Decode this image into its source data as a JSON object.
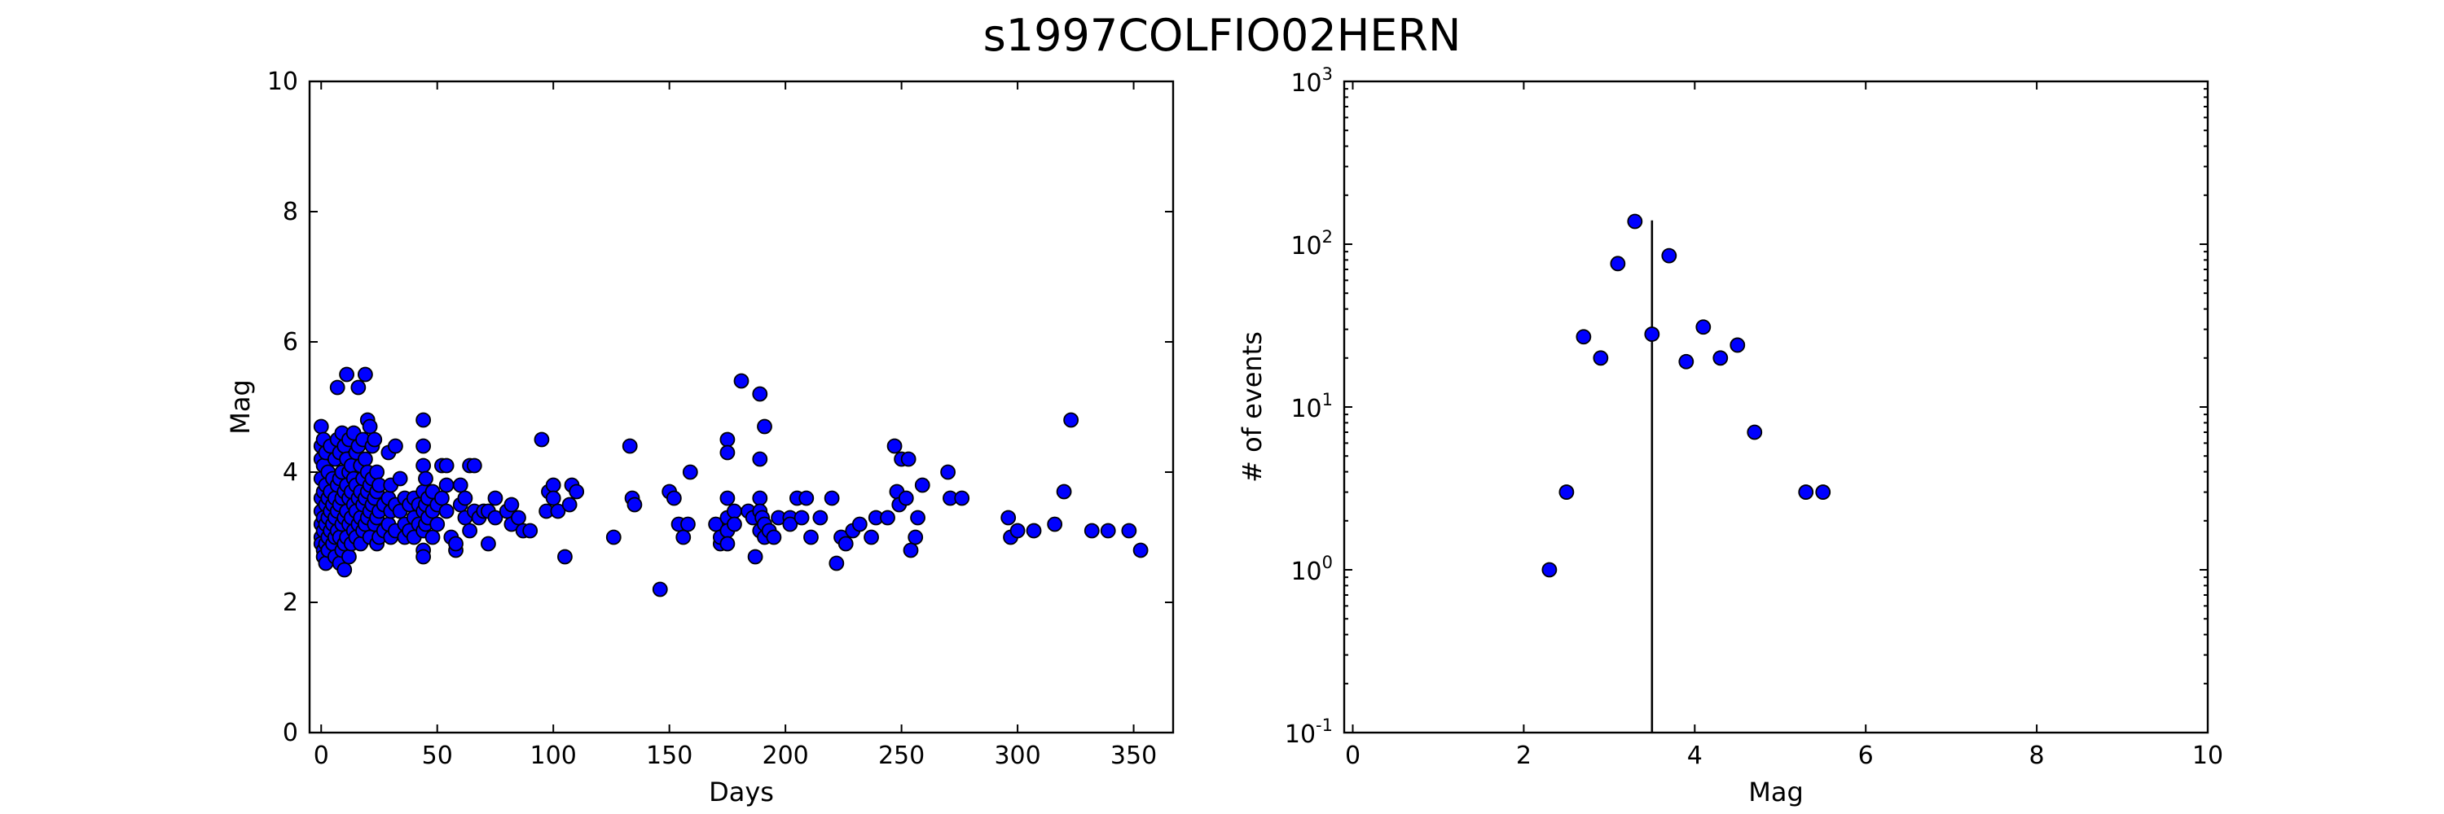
{
  "chart_data": {
    "title": "s1997COLFIO02HERN",
    "panels": [
      {
        "type": "scatter",
        "xlabel": "Days",
        "ylabel": "Mag",
        "xlim": [
          -5,
          367
        ],
        "ylim": [
          0,
          10
        ],
        "x_ticks": [
          0,
          50,
          100,
          150,
          200,
          250,
          300,
          350
        ],
        "y_ticks": [
          0,
          2,
          4,
          6,
          8,
          10
        ],
        "grid": false,
        "points": [
          [
            0,
            4.7
          ],
          [
            0,
            4.4
          ],
          [
            0,
            4.2
          ],
          [
            0,
            3.9
          ],
          [
            0,
            3.6
          ],
          [
            0,
            3.4
          ],
          [
            0,
            3.2
          ],
          [
            0,
            3.0
          ],
          [
            0,
            2.9
          ],
          [
            1,
            4.5
          ],
          [
            1,
            4.1
          ],
          [
            1,
            3.7
          ],
          [
            1,
            3.3
          ],
          [
            1,
            3.1
          ],
          [
            1,
            2.8
          ],
          [
            1,
            2.7
          ],
          [
            2,
            4.3
          ],
          [
            2,
            3.8
          ],
          [
            2,
            3.5
          ],
          [
            2,
            3.2
          ],
          [
            2,
            2.9
          ],
          [
            2,
            2.6
          ],
          [
            3,
            4.0
          ],
          [
            3,
            3.6
          ],
          [
            3,
            3.3
          ],
          [
            3,
            3.0
          ],
          [
            3,
            2.8
          ],
          [
            4,
            4.4
          ],
          [
            4,
            3.7
          ],
          [
            4,
            3.4
          ],
          [
            4,
            3.1
          ],
          [
            5,
            3.9
          ],
          [
            5,
            3.5
          ],
          [
            5,
            3.2
          ],
          [
            5,
            2.9
          ],
          [
            6,
            4.2
          ],
          [
            6,
            3.6
          ],
          [
            6,
            3.3
          ],
          [
            6,
            3.0
          ],
          [
            6,
            2.7
          ],
          [
            7,
            4.5
          ],
          [
            7,
            5.3
          ],
          [
            7,
            3.8
          ],
          [
            7,
            3.4
          ],
          [
            7,
            3.1
          ],
          [
            8,
            4.3
          ],
          [
            8,
            3.9
          ],
          [
            8,
            3.5
          ],
          [
            8,
            3.0
          ],
          [
            8,
            2.6
          ],
          [
            9,
            4.6
          ],
          [
            9,
            4.0
          ],
          [
            9,
            3.6
          ],
          [
            9,
            3.2
          ],
          [
            9,
            2.8
          ],
          [
            10,
            4.4
          ],
          [
            10,
            3.7
          ],
          [
            10,
            3.3
          ],
          [
            10,
            2.9
          ],
          [
            10,
            2.5
          ],
          [
            11,
            5.5
          ],
          [
            11,
            4.2
          ],
          [
            11,
            3.8
          ],
          [
            11,
            3.4
          ],
          [
            11,
            3.0
          ],
          [
            12,
            4.5
          ],
          [
            12,
            4.0
          ],
          [
            12,
            3.6
          ],
          [
            12,
            3.2
          ],
          [
            12,
            2.7
          ],
          [
            13,
            4.1
          ],
          [
            13,
            3.7
          ],
          [
            13,
            3.3
          ],
          [
            13,
            2.9
          ],
          [
            14,
            4.6
          ],
          [
            14,
            3.9
          ],
          [
            14,
            3.5
          ],
          [
            14,
            3.1
          ],
          [
            15,
            4.3
          ],
          [
            15,
            3.8
          ],
          [
            15,
            3.4
          ],
          [
            15,
            3.0
          ],
          [
            16,
            5.3
          ],
          [
            16,
            4.4
          ],
          [
            16,
            3.6
          ],
          [
            16,
            3.2
          ],
          [
            17,
            4.1
          ],
          [
            17,
            3.7
          ],
          [
            17,
            3.3
          ],
          [
            17,
            2.9
          ],
          [
            18,
            4.5
          ],
          [
            18,
            3.9
          ],
          [
            18,
            3.5
          ],
          [
            18,
            3.1
          ],
          [
            19,
            5.5
          ],
          [
            19,
            4.2
          ],
          [
            19,
            3.6
          ],
          [
            19,
            3.2
          ],
          [
            20,
            4.8
          ],
          [
            20,
            4.0
          ],
          [
            20,
            3.7
          ],
          [
            20,
            3.3
          ],
          [
            21,
            4.7
          ],
          [
            21,
            3.8
          ],
          [
            21,
            3.4
          ],
          [
            21,
            3.0
          ],
          [
            22,
            4.4
          ],
          [
            22,
            3.9
          ],
          [
            22,
            3.5
          ],
          [
            23,
            4.5
          ],
          [
            23,
            3.6
          ],
          [
            23,
            3.2
          ],
          [
            24,
            4.0
          ],
          [
            24,
            3.7
          ],
          [
            24,
            3.3
          ],
          [
            24,
            2.9
          ],
          [
            25,
            3.8
          ],
          [
            25,
            3.4
          ],
          [
            25,
            3.0
          ],
          [
            27,
            3.5
          ],
          [
            27,
            3.1
          ],
          [
            29,
            4.3
          ],
          [
            29,
            3.6
          ],
          [
            29,
            3.2
          ],
          [
            30,
            3.8
          ],
          [
            30,
            3.4
          ],
          [
            30,
            3.0
          ],
          [
            32,
            4.4
          ],
          [
            32,
            3.5
          ],
          [
            32,
            3.1
          ],
          [
            34,
            3.9
          ],
          [
            34,
            3.4
          ],
          [
            36,
            3.6
          ],
          [
            36,
            3.2
          ],
          [
            36,
            3.0
          ],
          [
            38,
            3.5
          ],
          [
            38,
            3.1
          ],
          [
            40,
            3.6
          ],
          [
            40,
            3.3
          ],
          [
            40,
            3.0
          ],
          [
            42,
            3.5
          ],
          [
            42,
            3.2
          ],
          [
            44,
            4.8
          ],
          [
            44,
            4.4
          ],
          [
            44,
            4.1
          ],
          [
            44,
            3.7
          ],
          [
            44,
            3.4
          ],
          [
            44,
            3.1
          ],
          [
            44,
            2.8
          ],
          [
            44,
            2.7
          ],
          [
            45,
            3.9
          ],
          [
            45,
            3.5
          ],
          [
            45,
            3.2
          ],
          [
            46,
            3.6
          ],
          [
            46,
            3.3
          ],
          [
            48,
            3.7
          ],
          [
            48,
            3.4
          ],
          [
            48,
            3.0
          ],
          [
            50,
            3.5
          ],
          [
            50,
            3.2
          ],
          [
            52,
            4.1
          ],
          [
            52,
            3.6
          ],
          [
            54,
            4.1
          ],
          [
            54,
            3.8
          ],
          [
            54,
            3.4
          ],
          [
            56,
            3.0
          ],
          [
            58,
            2.8
          ],
          [
            58,
            2.9
          ],
          [
            60,
            3.8
          ],
          [
            60,
            3.5
          ],
          [
            62,
            3.6
          ],
          [
            62,
            3.3
          ],
          [
            64,
            4.1
          ],
          [
            64,
            3.1
          ],
          [
            66,
            4.1
          ],
          [
            66,
            3.4
          ],
          [
            68,
            3.3
          ],
          [
            70,
            3.4
          ],
          [
            72,
            2.9
          ],
          [
            72,
            3.4
          ],
          [
            75,
            3.6
          ],
          [
            75,
            3.3
          ],
          [
            80,
            3.4
          ],
          [
            82,
            3.5
          ],
          [
            82,
            3.2
          ],
          [
            85,
            3.3
          ],
          [
            87,
            3.1
          ],
          [
            90,
            3.1
          ],
          [
            95,
            4.5
          ],
          [
            97,
            3.4
          ],
          [
            98,
            3.7
          ],
          [
            100,
            3.8
          ],
          [
            100,
            3.6
          ],
          [
            102,
            3.4
          ],
          [
            105,
            2.7
          ],
          [
            107,
            3.5
          ],
          [
            108,
            3.8
          ],
          [
            110,
            3.7
          ],
          [
            126,
            3.0
          ],
          [
            133,
            4.4
          ],
          [
            134,
            3.6
          ],
          [
            135,
            3.5
          ],
          [
            146,
            2.2
          ],
          [
            150,
            3.7
          ],
          [
            152,
            3.6
          ],
          [
            154,
            3.2
          ],
          [
            156,
            3.0
          ],
          [
            158,
            3.2
          ],
          [
            159,
            4.0
          ],
          [
            170,
            3.2
          ],
          [
            172,
            2.9
          ],
          [
            172,
            3.0
          ],
          [
            175,
            4.5
          ],
          [
            175,
            4.3
          ],
          [
            175,
            3.6
          ],
          [
            175,
            3.3
          ],
          [
            175,
            3.1
          ],
          [
            175,
            2.9
          ],
          [
            178,
            3.4
          ],
          [
            178,
            3.2
          ],
          [
            181,
            5.4
          ],
          [
            184,
            3.4
          ],
          [
            186,
            3.3
          ],
          [
            187,
            2.7
          ],
          [
            189,
            5.2
          ],
          [
            189,
            4.2
          ],
          [
            189,
            3.6
          ],
          [
            189,
            3.4
          ],
          [
            189,
            3.1
          ],
          [
            190,
            3.3
          ],
          [
            191,
            4.7
          ],
          [
            191,
            3.2
          ],
          [
            191,
            3.0
          ],
          [
            193,
            3.1
          ],
          [
            195,
            3.0
          ],
          [
            197,
            3.3
          ],
          [
            202,
            3.3
          ],
          [
            202,
            3.2
          ],
          [
            205,
            3.6
          ],
          [
            207,
            3.3
          ],
          [
            209,
            3.6
          ],
          [
            211,
            3.0
          ],
          [
            215,
            3.3
          ],
          [
            220,
            3.6
          ],
          [
            222,
            2.6
          ],
          [
            224,
            3.0
          ],
          [
            226,
            2.9
          ],
          [
            229,
            3.1
          ],
          [
            232,
            3.2
          ],
          [
            237,
            3.0
          ],
          [
            239,
            3.3
          ],
          [
            244,
            3.3
          ],
          [
            247,
            4.4
          ],
          [
            248,
            3.7
          ],
          [
            249,
            3.5
          ],
          [
            250,
            4.2
          ],
          [
            252,
            3.6
          ],
          [
            253,
            4.2
          ],
          [
            254,
            2.8
          ],
          [
            256,
            3.0
          ],
          [
            257,
            3.3
          ],
          [
            259,
            3.8
          ],
          [
            270,
            4.0
          ],
          [
            271,
            3.6
          ],
          [
            276,
            3.6
          ],
          [
            296,
            3.3
          ],
          [
            297,
            3.0
          ],
          [
            300,
            3.1
          ],
          [
            307,
            3.1
          ],
          [
            316,
            3.2
          ],
          [
            320,
            3.7
          ],
          [
            323,
            4.8
          ],
          [
            332,
            3.1
          ],
          [
            339,
            3.1
          ],
          [
            348,
            3.1
          ],
          [
            353,
            2.8
          ]
        ]
      },
      {
        "type": "scatter",
        "xlabel": "Mag",
        "ylabel": "# of events",
        "xlim": [
          -0.1,
          10
        ],
        "y_scale": "log",
        "ylim": [
          0.1,
          1000
        ],
        "x_ticks": [
          0,
          2,
          4,
          6,
          8,
          10
        ],
        "y_ticks": [
          {
            "base": "10",
            "exp": "-1",
            "value": 0.1
          },
          {
            "base": "10",
            "exp": "0",
            "value": 1
          },
          {
            "base": "10",
            "exp": "1",
            "value": 10
          },
          {
            "base": "10",
            "exp": "2",
            "value": 100
          },
          {
            "base": "10",
            "exp": "3",
            "value": 1000
          }
        ],
        "grid": false,
        "x": [
          2.3,
          2.5,
          2.7,
          2.9,
          3.1,
          3.3,
          3.5,
          3.7,
          3.9,
          4.1,
          4.3,
          4.5,
          4.7,
          5.3,
          5.5
        ],
        "y": [
          1,
          3,
          27,
          20,
          76,
          138,
          28,
          85,
          19,
          31,
          20,
          24,
          7,
          3,
          3
        ],
        "vline": {
          "x": 3.5,
          "y_top": 140
        }
      }
    ]
  },
  "colors": {
    "marker_fill": "#0000ff",
    "marker_edge": "#000000",
    "axes": "#000000"
  }
}
